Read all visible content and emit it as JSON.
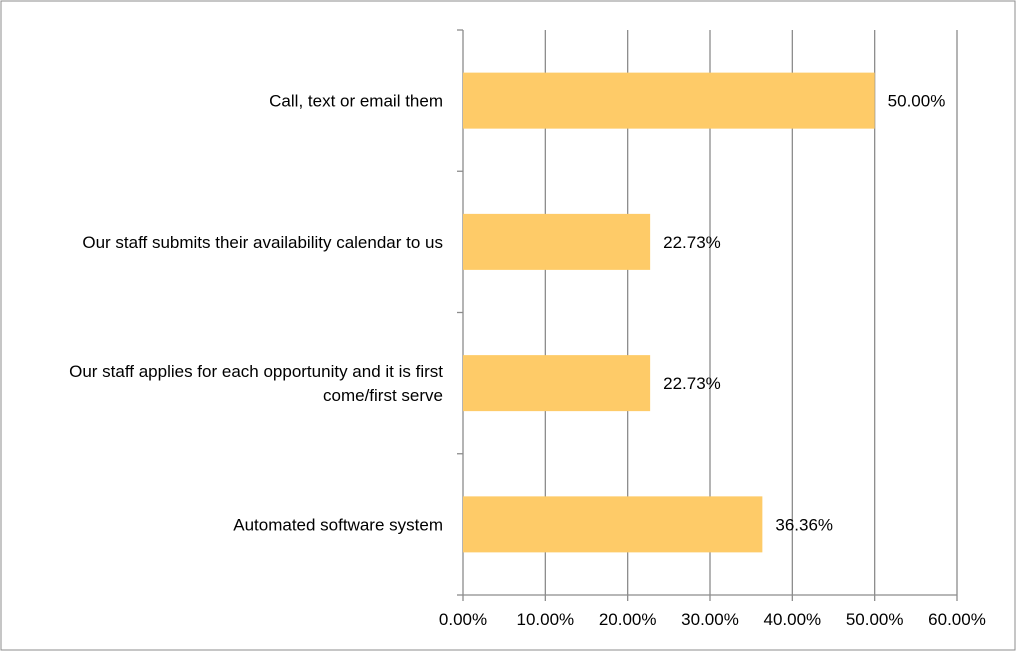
{
  "chart_data": {
    "type": "bar",
    "orientation": "horizontal",
    "title": "",
    "xlabel": "",
    "ylabel": "",
    "categories": [
      [
        "Call, text or email them"
      ],
      [
        "Our staff submits their availability calendar to us"
      ],
      [
        "Our staff applies for each opportunity and it is first",
        "come/first serve"
      ],
      [
        "Automated software system"
      ]
    ],
    "values": [
      50.0,
      22.73,
      22.73,
      36.36
    ],
    "data_labels": [
      "50.00%",
      "22.73%",
      "22.73%",
      "36.36%"
    ],
    "xlim": [
      0,
      60
    ],
    "ticks": [
      0,
      10,
      20,
      30,
      40,
      50,
      60
    ],
    "tick_labels": [
      "0.00%",
      "10.00%",
      "20.00%",
      "30.00%",
      "40.00%",
      "50.00%",
      "60.00%"
    ],
    "grid": "vertical",
    "legend": "none",
    "bar_color": "#FECB68",
    "grid_color": "#8C8C8C",
    "border_color": "#8C8C8C"
  }
}
